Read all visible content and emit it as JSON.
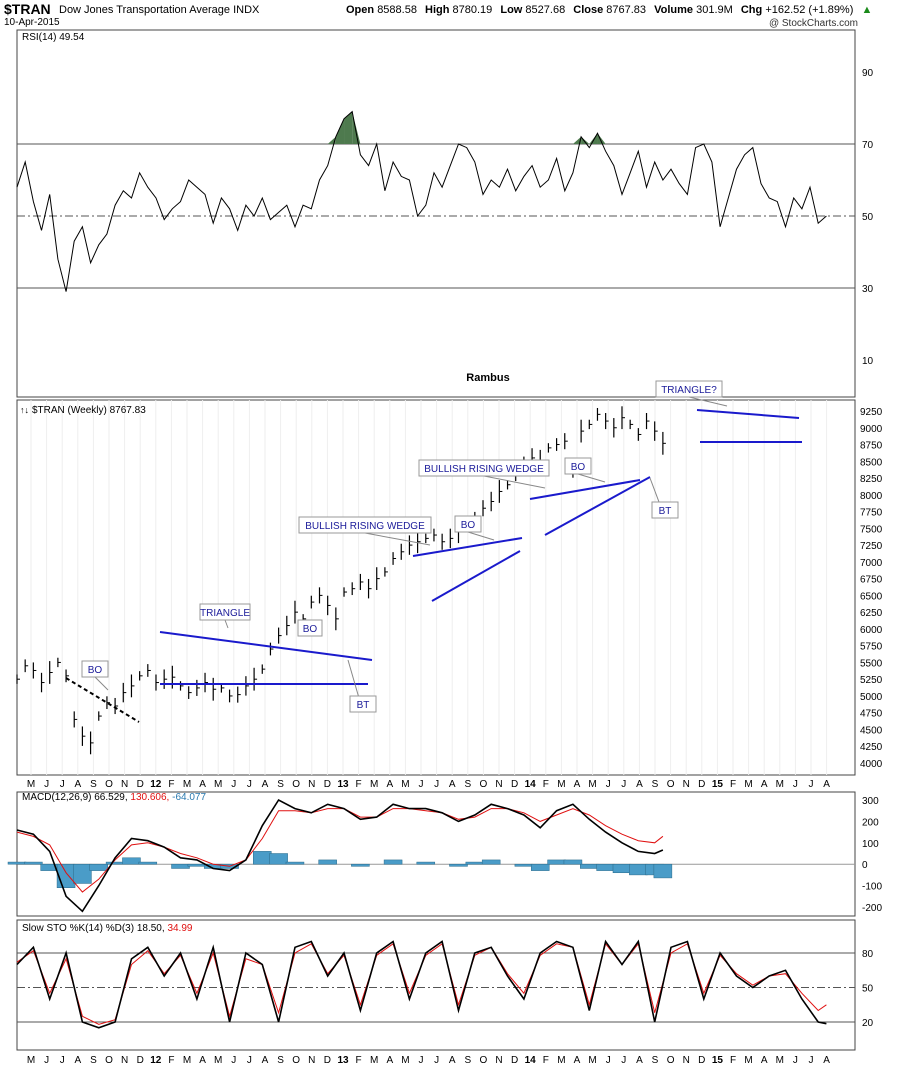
{
  "header": {
    "symbol": "$TRAN",
    "name": "Dow Jones Transportation Average INDX",
    "date": "10-Apr-2015",
    "open_label": "Open",
    "open": "8588.58",
    "high_label": "High",
    "high": "8780.19",
    "low_label": "Low",
    "low": "8527.68",
    "close_label": "Close",
    "close": "8767.83",
    "volume_label": "Volume",
    "volume": "301.9M",
    "chg_label": "Chg",
    "chg": "+162.52 (+1.89%)",
    "chg_arrow": "▲",
    "credit": "@ StockCharts.com"
  },
  "chart_data": [
    {
      "type": "line",
      "panel": "rsi",
      "legend": "RSI(14) 49.54",
      "ylim": [
        0,
        100
      ],
      "ticks": [
        10,
        30,
        50,
        70,
        90
      ],
      "reference_lines": [
        30,
        50,
        70
      ],
      "label": "Rambus",
      "x_weeks": [
        0,
        2,
        4,
        6,
        8,
        10,
        12,
        14,
        16,
        18,
        20,
        22,
        24,
        26,
        28,
        30,
        32,
        34,
        36,
        38,
        40,
        42,
        44,
        46,
        48,
        50,
        52,
        54,
        56,
        58,
        60,
        62,
        64,
        66,
        68,
        70,
        72,
        74,
        76,
        78,
        80,
        82,
        84,
        86,
        88,
        90,
        92,
        94,
        96,
        98,
        100,
        102,
        104,
        106,
        108,
        110,
        112,
        114,
        116,
        118,
        120,
        122,
        124,
        126,
        128,
        130,
        132,
        134,
        136,
        138,
        140,
        142,
        144,
        146,
        148,
        150,
        152,
        154,
        156,
        158,
        160,
        162,
        164,
        166,
        168,
        170,
        172,
        174,
        176,
        178,
        180,
        182,
        184,
        186,
        188,
        190,
        192,
        194,
        196,
        198
      ],
      "values": [
        58,
        65,
        54,
        46,
        56,
        38,
        29,
        43,
        47,
        37,
        42,
        45,
        53,
        57,
        55,
        62,
        58,
        55,
        49,
        52,
        54,
        60,
        58,
        56,
        48,
        55,
        52,
        46,
        53,
        50,
        55,
        49,
        51,
        53,
        47,
        53,
        52,
        60,
        64,
        72,
        77,
        79,
        67,
        64,
        70,
        57,
        65,
        61,
        60,
        50,
        53,
        62,
        58,
        64,
        70,
        69,
        65,
        56,
        60,
        58,
        63,
        57,
        61,
        64,
        58,
        60,
        66,
        57,
        62,
        72,
        69,
        73,
        68,
        64,
        56,
        62,
        68,
        58,
        65,
        60,
        63,
        59,
        56,
        69,
        70,
        65,
        47,
        55,
        63,
        67,
        69,
        59,
        55,
        54,
        47,
        55,
        52,
        58,
        48,
        50
      ],
      "series": [
        {
          "name": "RSI(14)",
          "last": "49.54"
        }
      ]
    },
    {
      "type": "line",
      "panel": "price",
      "legend": "$TRAN (Weekly) 8767.83",
      "ylim": [
        3900,
        9300
      ],
      "ticks": [
        4000,
        4250,
        4500,
        4750,
        5000,
        5250,
        5500,
        5750,
        6000,
        6250,
        6500,
        6750,
        7000,
        7250,
        7500,
        7750,
        8000,
        8250,
        8500,
        8750,
        9000,
        9250
      ],
      "x_weeks": [
        0,
        2,
        4,
        6,
        8,
        10,
        12,
        14,
        16,
        18,
        20,
        22,
        24,
        26,
        28,
        30,
        32,
        34,
        36,
        38,
        40,
        42,
        44,
        46,
        48,
        50,
        52,
        54,
        56,
        58,
        60,
        62,
        64,
        66,
        68,
        70,
        72,
        74,
        76,
        78,
        80,
        82,
        84,
        86,
        88,
        90,
        92,
        94,
        96,
        98,
        100,
        102,
        104,
        106,
        108,
        110,
        112,
        114,
        116,
        118,
        120,
        122,
        124,
        126,
        128,
        130,
        132,
        134,
        136,
        138,
        140,
        142,
        144,
        146,
        148,
        150,
        152,
        154,
        156,
        158,
        160,
        162,
        164,
        166,
        168,
        170,
        172,
        174,
        176,
        178,
        180,
        182,
        184,
        186,
        188,
        190,
        192,
        194,
        196,
        198
      ],
      "values": [
        5250,
        5450,
        5380,
        5200,
        5350,
        5500,
        5300,
        4650,
        4400,
        4300,
        4700,
        4900,
        4850,
        5050,
        5150,
        5300,
        5380,
        5200,
        5250,
        5280,
        5150,
        5050,
        5120,
        5200,
        5100,
        5120,
        5000,
        5020,
        5150,
        5250,
        5400,
        5700,
        5900,
        6050,
        6250,
        6150,
        6400,
        6500,
        6350,
        6150,
        6550,
        6600,
        6700,
        6600,
        6750,
        6850,
        7050,
        7150,
        7250,
        7300,
        7350,
        7400,
        7300,
        7350,
        7450,
        7600,
        7650,
        7800,
        7900,
        8050,
        8150,
        8300,
        8450,
        8550,
        8500,
        8700,
        8750,
        8800,
        8400,
        8950,
        9050,
        9200,
        9100,
        9000,
        9150,
        9050,
        8900,
        9100,
        8950,
        8767.83,
        8767.83,
        8767.83,
        8767.83,
        8767.83,
        8767.83,
        8767.83,
        8767.83,
        8767.83,
        8767.83,
        8767.83,
        8767.83,
        8767.83,
        8767.83,
        8767.83,
        8767.83,
        8767.83,
        8767.83,
        8767.83,
        8767.83,
        8767.83
      ],
      "annotations": [
        "TRIANGLE",
        "BO",
        "BT",
        "BULLISH RISING WEDGE",
        "BO",
        "BULLISH RISING WEDGE",
        "BO",
        "BT",
        "TRIANGLE?",
        "BO"
      ]
    },
    {
      "type": "line",
      "panel": "macd",
      "legend_prefix": "MACD(12,26,9)",
      "legend_macd": "66.529",
      "legend_signal": "130.606",
      "legend_hist": "-64.077",
      "ylim": [
        -250,
        350
      ],
      "ticks": [
        -200,
        -100,
        0,
        100,
        200,
        300
      ],
      "x_weeks": [
        0,
        4,
        8,
        12,
        16,
        20,
        24,
        28,
        32,
        36,
        40,
        44,
        48,
        52,
        56,
        60,
        64,
        68,
        72,
        76,
        80,
        84,
        88,
        92,
        96,
        100,
        104,
        108,
        112,
        116,
        120,
        124,
        128,
        132,
        136,
        140,
        144,
        148,
        152,
        156,
        158
      ],
      "macd": [
        160,
        140,
        60,
        -150,
        -220,
        -100,
        30,
        120,
        110,
        80,
        30,
        20,
        -20,
        -30,
        20,
        180,
        300,
        260,
        240,
        280,
        260,
        210,
        220,
        280,
        260,
        260,
        240,
        200,
        230,
        280,
        260,
        230,
        170,
        250,
        280,
        210,
        150,
        100,
        60,
        50,
        66.529
      ],
      "signal": [
        150,
        130,
        90,
        -40,
        -130,
        -70,
        20,
        90,
        100,
        80,
        50,
        30,
        0,
        -10,
        20,
        120,
        250,
        250,
        240,
        260,
        260,
        220,
        220,
        260,
        260,
        250,
        240,
        210,
        220,
        260,
        260,
        240,
        200,
        230,
        260,
        230,
        180,
        140,
        110,
        100,
        130.606
      ]
    },
    {
      "type": "line",
      "panel": "stochastic",
      "legend_prefix": "Slow STO %K(14) %D(3)",
      "legend_k": "18.50",
      "legend_d": "34.99",
      "ylim": [
        0,
        100
      ],
      "ticks": [
        20,
        50,
        80
      ],
      "reference_lines": [
        20,
        50,
        80
      ],
      "x_weeks": [
        0,
        4,
        8,
        12,
        16,
        20,
        24,
        28,
        32,
        36,
        40,
        44,
        48,
        52,
        56,
        60,
        64,
        68,
        72,
        76,
        80,
        84,
        88,
        92,
        96,
        100,
        104,
        108,
        112,
        116,
        120,
        124,
        128,
        132,
        136,
        140,
        144,
        148,
        152,
        156,
        160,
        164,
        168,
        172,
        176,
        180,
        184,
        188,
        192,
        196,
        198
      ],
      "k": [
        70,
        85,
        40,
        80,
        20,
        15,
        20,
        75,
        85,
        60,
        80,
        40,
        85,
        20,
        80,
        70,
        20,
        85,
        90,
        60,
        80,
        30,
        80,
        90,
        40,
        80,
        90,
        30,
        80,
        85,
        60,
        40,
        80,
        90,
        85,
        30,
        90,
        70,
        90,
        20,
        85,
        90,
        40,
        80,
        60,
        50,
        60,
        65,
        40,
        20,
        18.5
      ],
      "d": [
        72,
        82,
        45,
        75,
        25,
        18,
        22,
        70,
        82,
        62,
        78,
        45,
        80,
        25,
        75,
        70,
        28,
        80,
        88,
        62,
        78,
        35,
        78,
        88,
        45,
        78,
        88,
        35,
        78,
        85,
        62,
        45,
        78,
        88,
        85,
        35,
        88,
        70,
        88,
        28,
        80,
        88,
        45,
        78,
        62,
        52,
        60,
        62,
        45,
        30,
        34.99
      ]
    }
  ],
  "x_axis": {
    "labels": [
      "M",
      "J",
      "J",
      "A",
      "S",
      "O",
      "N",
      "D",
      "12",
      "F",
      "M",
      "A",
      "M",
      "J",
      "J",
      "A",
      "S",
      "O",
      "N",
      "D",
      "13",
      "F",
      "M",
      "A",
      "M",
      "J",
      "J",
      "A",
      "S",
      "O",
      "N",
      "D",
      "14",
      "F",
      "M",
      "A",
      "M",
      "J",
      "J",
      "A",
      "S",
      "O",
      "N",
      "D",
      "15",
      "F",
      "M",
      "A",
      "M",
      "J",
      "J",
      "A"
    ],
    "bold_labels": [
      "12",
      "13",
      "14",
      "15"
    ]
  },
  "colors": {
    "pattern_lines": "#1a1acc",
    "rsi_fill": "#4e7a4e",
    "macd_hist": "#4a9cc8",
    "signal_line": "#e01010",
    "grid": "#c8c8c8"
  }
}
